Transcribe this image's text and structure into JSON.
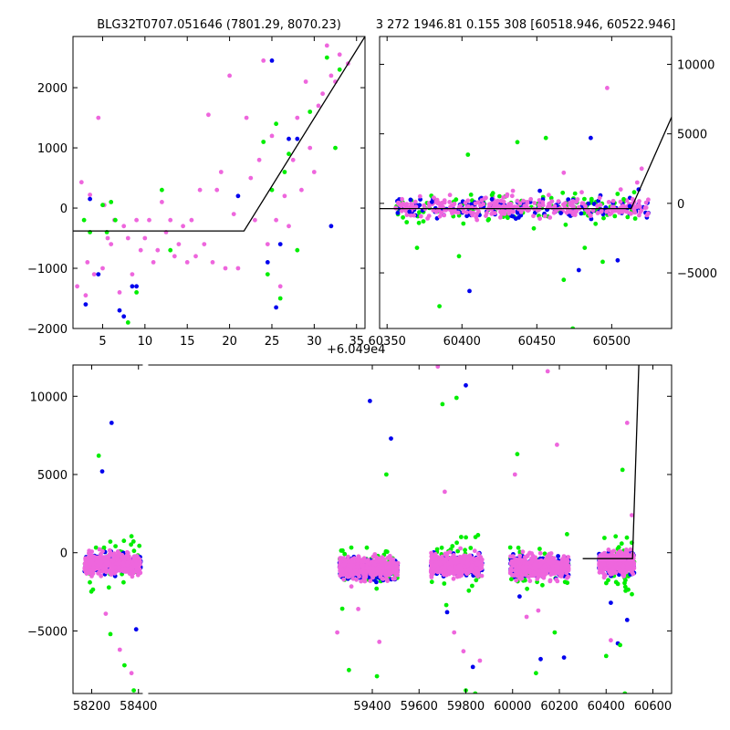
{
  "chart_data": [
    {
      "id": "zoom_left",
      "type": "scatter",
      "title": "BLG32T0707.051646 (7801.29, 8070.23)",
      "x_offset_label": "+6.049e4",
      "xlim": [
        1.5,
        36.0
      ],
      "ylim": [
        -2000,
        2850
      ],
      "xticks": [
        5,
        10,
        15,
        20,
        25,
        30,
        35
      ],
      "yticks": [
        -2000,
        -1000,
        0,
        1000,
        2000
      ],
      "ytick_side": "left",
      "model_line": [
        [
          1.5,
          -380
        ],
        [
          21.7,
          -380
        ],
        [
          36.0,
          2850
        ]
      ],
      "series": [
        {
          "color": "#ee66dd",
          "values": [
            [
              2.0,
              -1300
            ],
            [
              2.5,
              430
            ],
            [
              3.0,
              -1450
            ],
            [
              3.2,
              -900
            ],
            [
              3.5,
              220
            ],
            [
              4.0,
              -1100
            ],
            [
              4.5,
              1500
            ],
            [
              5.0,
              -1000
            ],
            [
              5.2,
              50
            ],
            [
              5.6,
              -500
            ],
            [
              6.0,
              -600
            ],
            [
              6.4,
              -200
            ],
            [
              7.0,
              -1400
            ],
            [
              7.5,
              -300
            ],
            [
              8.0,
              -500
            ],
            [
              8.5,
              -1100
            ],
            [
              9.0,
              -200
            ],
            [
              9.5,
              -700
            ],
            [
              10.0,
              -500
            ],
            [
              10.5,
              -200
            ],
            [
              11.0,
              -900
            ],
            [
              11.5,
              -700
            ],
            [
              12.0,
              100
            ],
            [
              12.5,
              -400
            ],
            [
              13.0,
              -200
            ],
            [
              13.5,
              -800
            ],
            [
              14.0,
              -600
            ],
            [
              14.5,
              -300
            ],
            [
              15.0,
              -900
            ],
            [
              15.5,
              -200
            ],
            [
              16.0,
              -800
            ],
            [
              16.5,
              300
            ],
            [
              17.0,
              -600
            ],
            [
              17.5,
              1550
            ],
            [
              18.0,
              -900
            ],
            [
              18.5,
              300
            ],
            [
              19.0,
              600
            ],
            [
              19.5,
              -1000
            ],
            [
              20.0,
              2200
            ],
            [
              20.5,
              -100
            ],
            [
              21.0,
              -1000
            ],
            [
              22.0,
              1500
            ],
            [
              22.5,
              500
            ],
            [
              23.0,
              -200
            ],
            [
              23.5,
              800
            ],
            [
              24.0,
              2450
            ],
            [
              24.5,
              -600
            ],
            [
              25.0,
              1200
            ],
            [
              25.5,
              -200
            ],
            [
              26.0,
              -1300
            ],
            [
              26.5,
              200
            ],
            [
              27.0,
              -300
            ],
            [
              27.5,
              800
            ],
            [
              28.0,
              1500
            ],
            [
              28.5,
              300
            ],
            [
              29.0,
              2100
            ],
            [
              29.5,
              1000
            ],
            [
              30.0,
              600
            ],
            [
              30.5,
              1700
            ],
            [
              31.0,
              1900
            ],
            [
              31.5,
              2700
            ],
            [
              32.0,
              2200
            ],
            [
              32.5,
              2100
            ],
            [
              33.0,
              2550
            ],
            [
              34.0,
              2400
            ]
          ]
        },
        {
          "color": "#00ee00",
          "values": [
            [
              2.8,
              -200
            ],
            [
              3.5,
              -400
            ],
            [
              5.0,
              50
            ],
            [
              5.5,
              -400
            ],
            [
              6.0,
              100
            ],
            [
              6.5,
              -200
            ],
            [
              8.0,
              -1900
            ],
            [
              9.0,
              -1400
            ],
            [
              12.0,
              300
            ],
            [
              13.0,
              -700
            ],
            [
              24.0,
              1100
            ],
            [
              24.5,
              -1100
            ],
            [
              25.0,
              300
            ],
            [
              25.5,
              1400
            ],
            [
              26.0,
              -1500
            ],
            [
              26.5,
              600
            ],
            [
              27.0,
              900
            ],
            [
              28.0,
              -700
            ],
            [
              29.5,
              1600
            ],
            [
              31.5,
              2500
            ],
            [
              32.5,
              1000
            ],
            [
              33.0,
              2300
            ]
          ]
        },
        {
          "color": "#0000ee",
          "values": [
            [
              3.0,
              -1600
            ],
            [
              3.5,
              150
            ],
            [
              4.5,
              -1100
            ],
            [
              7.0,
              -1700
            ],
            [
              7.5,
              -1800
            ],
            [
              8.5,
              -1300
            ],
            [
              9.0,
              -1300
            ],
            [
              21.0,
              200
            ],
            [
              24.5,
              -900
            ],
            [
              25.0,
              2450
            ],
            [
              25.5,
              -1650
            ],
            [
              26.0,
              -600
            ],
            [
              27.0,
              1150
            ],
            [
              28.0,
              1150
            ],
            [
              32.0,
              -300
            ]
          ]
        }
      ]
    },
    {
      "id": "zoom_right",
      "type": "scatter",
      "title": "3 272 1946.81 0.155 308 [60518.946, 60522.946]",
      "xlim": [
        60345,
        60540
      ],
      "ylim": [
        -9000,
        12000
      ],
      "xticks": [
        60350,
        60400,
        60450,
        60500
      ],
      "yticks": [
        -5000,
        0,
        5000,
        10000
      ],
      "ytick_side": "right",
      "model_line": [
        [
          60345,
          -380
        ],
        [
          60513,
          -380
        ],
        [
          60540,
          6200
        ]
      ],
      "series": [
        {
          "color": "#ee66dd",
          "values": [
            [
              60360,
              300
            ],
            [
              60366,
              -500
            ],
            [
              60372,
              500
            ],
            [
              60378,
              -900
            ],
            [
              60384,
              0
            ],
            [
              60392,
              600
            ],
            [
              60398,
              -300
            ],
            [
              60404,
              200
            ],
            [
              60410,
              -1200
            ],
            [
              60416,
              400
            ],
            [
              60422,
              -700
            ],
            [
              60428,
              100
            ],
            [
              60434,
              900
            ],
            [
              60440,
              -400
            ],
            [
              60446,
              300
            ],
            [
              60452,
              -1100
            ],
            [
              60458,
              600
            ],
            [
              60462,
              -200
            ],
            [
              60468,
              2200
            ],
            [
              60474,
              -300
            ],
            [
              60480,
              800
            ],
            [
              60486,
              -900
            ],
            [
              60492,
              400
            ],
            [
              60497,
              8300
            ],
            [
              60502,
              -400
            ],
            [
              60506,
              1000
            ],
            [
              60510,
              -600
            ],
            [
              60514,
              300
            ],
            [
              60517,
              1500
            ],
            [
              60520,
              2500
            ]
          ]
        },
        {
          "color": "#00ee00",
          "values": [
            [
              60370,
              -3200
            ],
            [
              60385,
              -7400
            ],
            [
              60398,
              -3800
            ],
            [
              60404,
              3500
            ],
            [
              60420,
              600
            ],
            [
              60437,
              4400
            ],
            [
              60448,
              -1800
            ],
            [
              60456,
              4700
            ],
            [
              60468,
              -5500
            ],
            [
              60474,
              -9000
            ],
            [
              60482,
              -3200
            ],
            [
              60494,
              -4200
            ],
            [
              60508,
              300
            ],
            [
              60515,
              800
            ]
          ]
        },
        {
          "color": "#0000ee",
          "values": [
            [
              60365,
              -600
            ],
            [
              60380,
              100
            ],
            [
              60405,
              -6300
            ],
            [
              60420,
              300
            ],
            [
              60436,
              -1100
            ],
            [
              60452,
              900
            ],
            [
              60466,
              -700
            ],
            [
              60478,
              -4800
            ],
            [
              60486,
              4700
            ],
            [
              60496,
              -300
            ],
            [
              60504,
              -4100
            ],
            [
              60512,
              -200
            ],
            [
              60518,
              1000
            ]
          ]
        }
      ]
    },
    {
      "id": "full",
      "type": "scatter",
      "xlim": [
        58120,
        60680
      ],
      "ylim": [
        -9000,
        12000
      ],
      "xticks": [
        58200,
        58400,
        59400,
        59600,
        59800,
        60000,
        60200,
        60400,
        60600
      ],
      "yticks": [
        -5000,
        0,
        5000,
        10000
      ],
      "ytick_side": "left",
      "x_break": [
        58430,
        59220
      ],
      "model_line": [
        [
          60300,
          -380
        ],
        [
          60513,
          -380
        ],
        [
          60540,
          12000
        ]
      ],
      "clusters": [
        {
          "x": [
            58170,
            58410
          ],
          "y_center": -700
        },
        {
          "x": [
            59260,
            59510
          ],
          "y_center": -1000
        },
        {
          "x": [
            59650,
            59870
          ],
          "y_center": -800
        },
        {
          "x": [
            59990,
            60240
          ],
          "y_center": -900
        },
        {
          "x": [
            60370,
            60520
          ],
          "y_center": -700
        }
      ],
      "series": [
        {
          "color": "#0000ee",
          "values": [
            [
              58245,
              5200
            ],
            [
              58285,
              8300
            ],
            [
              58390,
              -4900
            ],
            [
              59390,
              9700
            ],
            [
              59480,
              7300
            ],
            [
              59720,
              -3800
            ],
            [
              59800,
              10700
            ],
            [
              59830,
              -7300
            ],
            [
              60030,
              -2800
            ],
            [
              60120,
              -6800
            ],
            [
              60220,
              -6700
            ],
            [
              60420,
              -3200
            ],
            [
              60450,
              -5800
            ],
            [
              60490,
              -4300
            ]
          ]
        },
        {
          "color": "#00ee00",
          "values": [
            [
              58230,
              6200
            ],
            [
              58280,
              -5200
            ],
            [
              58340,
              -7200
            ],
            [
              58380,
              -8800
            ],
            [
              59300,
              -7500
            ],
            [
              59420,
              -7900
            ],
            [
              59460,
              5000
            ],
            [
              59700,
              9500
            ],
            [
              59760,
              9900
            ],
            [
              59800,
              -8800
            ],
            [
              59840,
              -9000
            ],
            [
              60020,
              6300
            ],
            [
              60100,
              -7700
            ],
            [
              60180,
              -5100
            ],
            [
              60400,
              -6600
            ],
            [
              60460,
              -5900
            ],
            [
              60470,
              5300
            ],
            [
              60480,
              -9000
            ]
          ]
        },
        {
          "color": "#ee66dd",
          "values": [
            [
              58200,
              -1500
            ],
            [
              58260,
              -3900
            ],
            [
              58320,
              -6200
            ],
            [
              58370,
              -7700
            ],
            [
              59250,
              -5100
            ],
            [
              59340,
              -3600
            ],
            [
              59430,
              -5700
            ],
            [
              59680,
              11900
            ],
            [
              59710,
              3900
            ],
            [
              59750,
              -5100
            ],
            [
              59790,
              -6300
            ],
            [
              59860,
              -6900
            ],
            [
              60010,
              5000
            ],
            [
              60060,
              -4100
            ],
            [
              60110,
              -3700
            ],
            [
              60150,
              11600
            ],
            [
              60190,
              6900
            ],
            [
              60420,
              -5600
            ],
            [
              60490,
              8300
            ],
            [
              60510,
              2400
            ]
          ]
        }
      ]
    }
  ]
}
